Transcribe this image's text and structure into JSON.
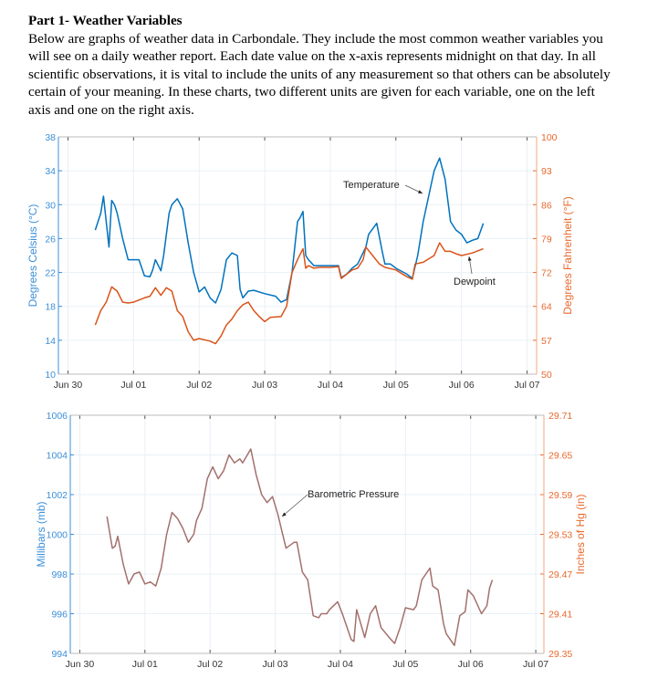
{
  "header": {
    "title": "Part 1- Weather Variables",
    "lines": [
      "Below are graphs of weather data in Carbondale.  They include the most common weather variables you",
      "will see on a daily weather report. Each date value on the x-axis represents midnight on that day. In all",
      "scientific observations, it is vital to include the units of any measurement so that others can be absolutely",
      "certain of your meaning.  In these charts, two different units are given for each variable, one on the left",
      "axis and one on the right axis."
    ]
  },
  "colors": {
    "temperature": "#0072BD",
    "dewpoint": "#D95319",
    "pressure": "#A3706C",
    "left_axis": "#3C8FD8",
    "right_axis": "#E8692E",
    "grid": "#E9F0F6"
  },
  "chart_data": [
    {
      "type": "line",
      "xlabel": "",
      "ylabel": "Degrees Celsius (°C)",
      "ylabel_right": "Degrees Fahrenheit (°F)",
      "xlim": [
        "Jun 30 -03:30",
        "Jul 07 03:30"
      ],
      "ylim": [
        10,
        38
      ],
      "ylim_right": [
        50,
        100
      ],
      "x_ticks": [
        "Jun 30",
        "Jul 01",
        "Jul 02",
        "Jul 03",
        "Jul 04",
        "Jul 05",
        "Jul 06",
        "Jul 07"
      ],
      "y_ticks": [
        "10",
        "14",
        "18",
        "22",
        "26",
        "30",
        "34",
        "38"
      ],
      "y_ticks_right": [
        "50",
        "57",
        "64",
        "72",
        "79",
        "86",
        "93",
        "100"
      ],
      "grid": true,
      "annotations": [
        {
          "text": "Temperature",
          "series": "Temperature"
        },
        {
          "text": "Dewpoint",
          "series": "Dewpoint"
        }
      ],
      "series": [
        {
          "name": "Temperature",
          "x": [
            "Jun 30 10:00",
            "Jun 30 12:00",
            "Jun 30 13:00",
            "Jun 30 14:00",
            "Jun 30 15:00",
            "Jun 30 16:00",
            "Jun 30 17:00",
            "Jun 30 18:00",
            "Jun 30 20:00",
            "Jun 30 22:00",
            "Jul 01 00:00",
            "Jul 01 02:00",
            "Jul 01 04:00",
            "Jul 01 06:00",
            "Jul 01 07:00",
            "Jul 01 08:00",
            "Jul 01 10:00",
            "Jul 01 11:00",
            "Jul 01 13:00",
            "Jul 01 14:00",
            "Jul 01 16:00",
            "Jul 01 18:00",
            "Jul 01 20:00",
            "Jul 01 22:00",
            "Jul 02 00:00",
            "Jul 02 02:00",
            "Jul 02 04:00",
            "Jul 02 06:00",
            "Jul 02 08:00",
            "Jul 02 10:00",
            "Jul 02 12:00",
            "Jul 02 14:00",
            "Jul 02 15:00",
            "Jul 02 16:00",
            "Jul 02 18:00",
            "Jul 02 20:00",
            "Jul 03 00:00",
            "Jul 03 04:00",
            "Jul 03 06:00",
            "Jul 03 08:00",
            "Jul 03 10:00",
            "Jul 03 12:00",
            "Jul 03 13:00",
            "Jul 03 14:00",
            "Jul 03 15:00",
            "Jul 03 16:00",
            "Jul 03 18:00",
            "Jul 03 20:00",
            "Jul 04 00:00",
            "Jul 04 03:00",
            "Jul 04 04:00",
            "Jul 04 06:00",
            "Jul 04 08:00",
            "Jul 04 10:00",
            "Jul 04 13:00",
            "Jul 04 14:00",
            "Jul 04 17:00",
            "Jul 04 19:00",
            "Jul 04 20:00",
            "Jul 04 22:00",
            "Jul 05 00:00",
            "Jul 05 04:00",
            "Jul 05 06:00",
            "Jul 05 08:00",
            "Jul 05 10:00",
            "Jul 05 12:00",
            "Jul 05 14:00",
            "Jul 05 16:00",
            "Jul 05 18:00",
            "Jul 05 20:00",
            "Jul 05 22:00",
            "Jul 06 00:00",
            "Jul 06 02:00",
            "Jul 06 04:00",
            "Jul 06 06:00",
            "Jul 06 08:00"
          ],
          "y": [
            27,
            29,
            31,
            28,
            25,
            30.5,
            30,
            29,
            26,
            23.5,
            23.5,
            23.5,
            21.6,
            21.5,
            22.3,
            23.5,
            22.2,
            24,
            29,
            30,
            30.7,
            29.5,
            25.5,
            22,
            19.7,
            20.3,
            19,
            18.4,
            20,
            23.5,
            24.3,
            24,
            20,
            19,
            19.8,
            19.9,
            19.5,
            19.2,
            18.5,
            18.8,
            22,
            28,
            28.5,
            29.2,
            24,
            23.5,
            22.8,
            22.8,
            22.8,
            22.8,
            21.4,
            21.8,
            22.5,
            23,
            25,
            26.5,
            27.8,
            24.5,
            23,
            23,
            22.5,
            21.8,
            21.3,
            24,
            28,
            31,
            34,
            35.5,
            33,
            28,
            27,
            26.5,
            25.5,
            25.8,
            26,
            27.8
          ]
        },
        {
          "name": "Dewpoint",
          "x": [
            "Jun 30 10:00",
            "Jun 30 12:00",
            "Jun 30 14:00",
            "Jun 30 16:00",
            "Jun 30 18:00",
            "Jun 30 20:00",
            "Jun 30 22:00",
            "Jul 01 00:00",
            "Jul 01 04:00",
            "Jul 01 06:00",
            "Jul 01 08:00",
            "Jul 01 10:00",
            "Jul 01 12:00",
            "Jul 01 14:00",
            "Jul 01 16:00",
            "Jul 01 18:00",
            "Jul 01 20:00",
            "Jul 01 22:00",
            "Jul 02 00:00",
            "Jul 02 04:00",
            "Jul 02 06:00",
            "Jul 02 08:00",
            "Jul 02 10:00",
            "Jul 02 12:00",
            "Jul 02 14:00",
            "Jul 02 16:00",
            "Jul 02 18:00",
            "Jul 02 20:00",
            "Jul 02 22:00",
            "Jul 03 00:00",
            "Jul 03 02:00",
            "Jul 03 06:00",
            "Jul 03 08:00",
            "Jul 03 10:00",
            "Jul 03 12:00",
            "Jul 03 14:00",
            "Jul 03 15:00",
            "Jul 03 16:00",
            "Jul 03 18:00",
            "Jul 03 20:00",
            "Jul 04 00:00",
            "Jul 04 03:00",
            "Jul 04 04:00",
            "Jul 04 06:00",
            "Jul 04 08:00",
            "Jul 04 10:00",
            "Jul 04 12:00",
            "Jul 04 13:00",
            "Jul 04 16:00",
            "Jul 04 18:00",
            "Jul 04 20:00",
            "Jul 05 00:00",
            "Jul 05 04:00",
            "Jul 05 06:00",
            "Jul 05 07:00",
            "Jul 05 10:00",
            "Jul 05 14:00",
            "Jul 05 16:00",
            "Jul 05 18:00",
            "Jul 05 20:00",
            "Jul 05 22:00",
            "Jul 06 00:00",
            "Jul 06 04:00",
            "Jul 06 08:00"
          ],
          "y": [
            15.8,
            17.5,
            18.5,
            20.3,
            19.8,
            18.5,
            18.4,
            18.5,
            19,
            19.2,
            20.2,
            19.3,
            20.2,
            19.8,
            17.5,
            16.8,
            15,
            14,
            14.2,
            13.9,
            13.6,
            14.5,
            15.8,
            16.5,
            17.5,
            18.2,
            18.5,
            17.5,
            16.8,
            16.2,
            16.7,
            16.8,
            18,
            22,
            23.5,
            24.8,
            22.5,
            22.8,
            22.5,
            22.6,
            22.6,
            22.7,
            21.3,
            21.8,
            22.3,
            22.5,
            23.5,
            25,
            23.8,
            23,
            22.6,
            22.3,
            21.5,
            21.2,
            23,
            23.2,
            24,
            25.5,
            24.5,
            24.5,
            24.2,
            24,
            24.3,
            24.8
          ]
        }
      ]
    },
    {
      "type": "line",
      "xlabel": "",
      "ylabel": "Millibars (mb)",
      "ylabel_right": "Inches of Hg (in)",
      "xlim": [
        "Jun 30 -03:30",
        "Jul 07 03:00"
      ],
      "ylim": [
        994,
        1006
      ],
      "ylim_right": [
        29.35,
        29.71
      ],
      "x_ticks": [
        "Jun 30",
        "Jul 01",
        "Jul 02",
        "Jul 03",
        "Jul 04",
        "Jul 05",
        "Jul 06",
        "Jul 07"
      ],
      "y_ticks": [
        "994",
        "996",
        "998",
        "1000",
        "1002",
        "1004",
        "1006"
      ],
      "y_ticks_right": [
        "29.35",
        "29.41",
        "29.47",
        "29.53",
        "29.59",
        "29.65",
        "29.71"
      ],
      "grid": true,
      "annotations": [
        {
          "text": "Barometric Pressure",
          "series": "Barometric Pressure"
        }
      ],
      "series": [
        {
          "name": "Barometric Pressure",
          "x": [
            "Jun 30 10:00",
            "Jun 30 12:00",
            "Jun 30 13:00",
            "Jun 30 14:00",
            "Jun 30 16:00",
            "Jun 30 18:00",
            "Jun 30 20:00",
            "Jun 30 22:00",
            "Jul 01 00:00",
            "Jul 01 02:00",
            "Jul 01 04:00",
            "Jul 01 06:00",
            "Jul 01 08:00",
            "Jul 01 10:00",
            "Jul 01 12:00",
            "Jul 01 14:00",
            "Jul 01 16:00",
            "Jul 01 18:00",
            "Jul 01 19:00",
            "Jul 01 21:00",
            "Jul 01 23:00",
            "Jul 02 01:00",
            "Jul 02 03:00",
            "Jul 02 05:00",
            "Jul 02 07:00",
            "Jul 02 09:00",
            "Jul 02 11:00",
            "Jul 02 12:00",
            "Jul 02 15:00",
            "Jul 02 17:00",
            "Jul 02 19:00",
            "Jul 02 21:00",
            "Jul 02 23:00",
            "Jul 03 01:00",
            "Jul 03 04:00",
            "Jul 03 07:00",
            "Jul 03 08:00",
            "Jul 03 10:00",
            "Jul 03 12:00",
            "Jul 03 14:00",
            "Jul 03 16:00",
            "Jul 03 17:00",
            "Jul 03 19:00",
            "Jul 03 20:00",
            "Jul 03 23:00",
            "Jul 04 01:00",
            "Jul 04 04:00",
            "Jul 04 05:00",
            "Jul 04 06:00",
            "Jul 04 09:00",
            "Jul 04 11:00",
            "Jul 04 13:00",
            "Jul 04 15:00",
            "Jul 04 18:00",
            "Jul 04 20:00",
            "Jul 04 22:00",
            "Jul 05 00:00",
            "Jul 05 03:00",
            "Jul 05 04:00",
            "Jul 05 06:00",
            "Jul 05 09:00",
            "Jul 05 10:00",
            "Jul 05 12:00",
            "Jul 05 14:00",
            "Jul 05 15:00",
            "Jul 05 18:00",
            "Jul 05 20:00",
            "Jul 05 22:00",
            "Jul 05 23:00",
            "Jul 06 01:00",
            "Jul 06 04:00",
            "Jul 06 06:00",
            "Jul 06 07:00",
            "Jul 06 08:00"
          ],
          "y": [
            1000.9,
            999.3,
            999.4,
            999.9,
            998.5,
            997.5,
            998.0,
            998.1,
            997.5,
            997.6,
            997.4,
            998.3,
            1000.0,
            1001.1,
            1000.8,
            1000.3,
            999.6,
            1000.0,
            1000.7,
            1001.3,
            1002.8,
            1003.4,
            1002.8,
            1003.2,
            1004.0,
            1003.6,
            1003.8,
            1003.6,
            1004.3,
            1003.0,
            1002.0,
            1001.6,
            1001.9,
            1001.0,
            999.3,
            999.6,
            999.6,
            998.1,
            997.7,
            995.9,
            995.8,
            996.0,
            996.0,
            996.2,
            996.6,
            995.9,
            994.7,
            994.6,
            996.2,
            994.8,
            996.0,
            996.4,
            995.3,
            994.8,
            994.5,
            995.3,
            996.3,
            996.2,
            996.4,
            997.7,
            998.3,
            997.4,
            997.2,
            995.5,
            995.0,
            994.4,
            995.9,
            996.1,
            997.2,
            996.9,
            996.0,
            996.4,
            997.3,
            997.7
          ]
        }
      ]
    }
  ]
}
